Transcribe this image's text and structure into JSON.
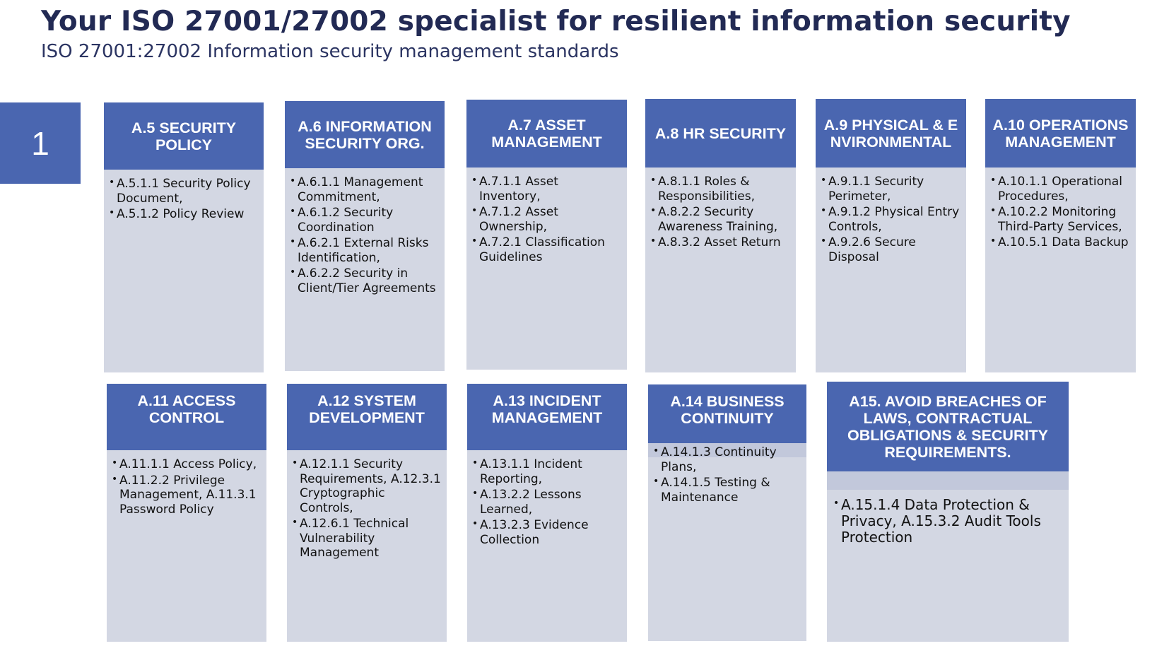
{
  "header": {
    "title": "Your ISO 27001/27002 specialist for resilient information security",
    "subtitle": "ISO 27001:27002 Information security management standards"
  },
  "page_number": "1",
  "colors": {
    "header_blue": "#4a66b0",
    "body_gray": "#d3d7e3",
    "title_navy": "#222a54"
  },
  "cards": [
    {
      "title": "A.5 SECURITY POLICY",
      "items": [
        "A.5.1.1 Security Policy Document,",
        "A.5.1.2 Policy Review"
      ]
    },
    {
      "title": "A.6 INFORMATION SECURITY ORG.",
      "items": [
        "A.6.1.1 Management Commitment,",
        "A.6.1.2 Security Coordination",
        "A.6.2.1 External Risks Identification,",
        "A.6.2.2 Security in Client/Tier Agreements"
      ]
    },
    {
      "title": "A.7 ASSET MANAGEMENT",
      "items": [
        "A.7.1.1 Asset Inventory,",
        "A.7.1.2 Asset Ownership,",
        "A.7.2.1 Classification Guidelines"
      ]
    },
    {
      "title": "A.8 HR SECURITY",
      "items": [
        "A.8.1.1 Roles & Responsibilities,",
        "A.8.2.2 Security Awareness Training,",
        "A.8.3.2 Asset Return"
      ]
    },
    {
      "title": "A.9 PHYSICAL & ENVIRONMENTAL",
      "items": [
        "A.9.1.1 Security Perimeter,",
        "A.9.1.2 Physical Entry Controls,",
        "A.9.2.6 Secure Disposal"
      ]
    },
    {
      "title": "A.10 OPERATIONS MANAGEMENT",
      "items": [
        "A.10.1.1 Operational Procedures,",
        "A.10.2.2 Monitoring Third-Party Services,",
        "A.10.5.1 Data Backup"
      ]
    },
    {
      "title": "A.11 ACCESS CONTROL",
      "items": [
        "A.11.1.1 Access Policy,",
        "A.11.2.2 Privilege Management, A.11.3.1 Password Policy"
      ]
    },
    {
      "title": "A.12 SYSTEM DEVELOPMENT",
      "items": [
        "A.12.1.1 Security Requirements, A.12.3.1 Cryptographic Controls,",
        "A.12.6.1 Technical Vulnerability Management"
      ]
    },
    {
      "title": "A.13 INCIDENT MANAGEMENT",
      "items": [
        "A.13.1.1 Incident Reporting,",
        "A.13.2.2 Lessons Learned,",
        "A.13.2.3 Evidence Collection"
      ]
    },
    {
      "title": "A.14 BUSINESS CONTINUITY",
      "items": [
        "A.14.1.3 Continuity Plans,",
        "A.14.1.5 Testing & Maintenance"
      ]
    },
    {
      "title": "A15. AVOID BREACHES OF LAWS, CONTRACTUAL OBLIGATIONS & SECURITY REQUIREMENTS.",
      "items": [
        "A.15.1.4 Data Protection & Privacy, A.15.3.2 Audit Tools Protection"
      ]
    }
  ]
}
